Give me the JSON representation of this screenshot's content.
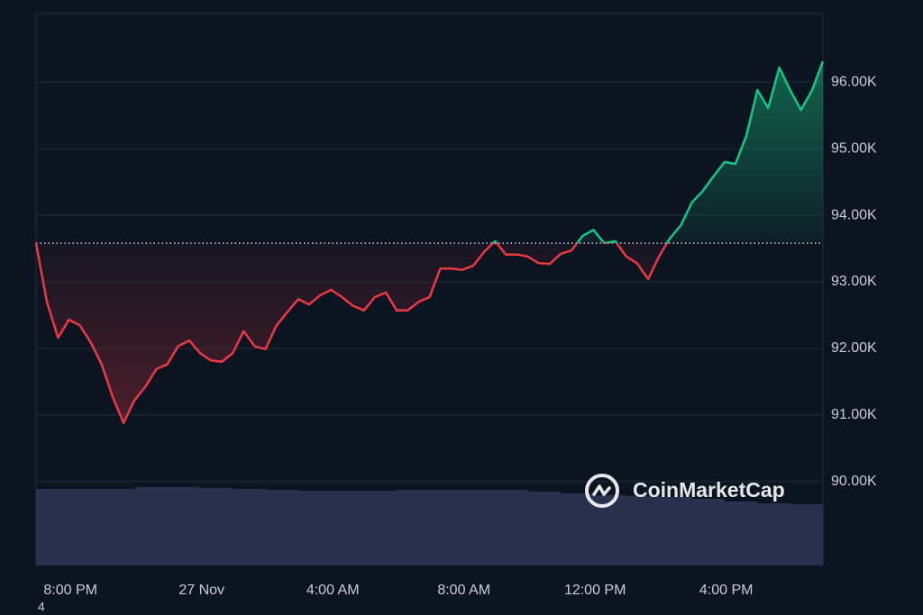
{
  "chart_data": {
    "type": "line",
    "x": [
      -1.05,
      -0.72,
      -0.38,
      -0.05,
      0.28,
      0.62,
      0.95,
      1.28,
      1.62,
      1.95,
      2.28,
      2.62,
      2.95,
      3.28,
      3.62,
      3.95,
      4.28,
      4.62,
      4.95,
      5.28,
      5.62,
      5.95,
      6.28,
      6.62,
      6.95,
      7.28,
      7.62,
      7.95,
      8.28,
      8.62,
      8.95,
      9.28,
      9.62,
      9.95,
      10.28,
      10.62,
      10.95,
      11.28,
      11.62,
      11.95,
      12.28,
      12.62,
      12.95,
      13.28,
      13.62,
      13.95,
      14.28,
      14.62,
      14.95,
      15.28,
      15.62,
      15.95,
      16.28,
      16.62,
      16.95,
      17.28,
      17.62,
      17.95,
      18.28,
      18.62,
      18.95,
      19.28,
      19.62,
      19.95,
      20.28,
      20.62,
      20.95,
      21.28,
      21.62,
      21.95,
      22.28,
      22.62,
      22.95
    ],
    "values": [
      93.58,
      92.7,
      92.16,
      92.43,
      92.35,
      92.09,
      91.76,
      91.28,
      90.88,
      91.22,
      91.42,
      91.69,
      91.76,
      92.03,
      92.12,
      91.93,
      91.82,
      91.8,
      91.93,
      92.26,
      92.03,
      91.99,
      92.34,
      92.55,
      92.74,
      92.66,
      92.8,
      92.88,
      92.77,
      92.64,
      92.57,
      92.77,
      92.84,
      92.57,
      92.57,
      92.7,
      92.77,
      93.2,
      93.2,
      93.18,
      93.24,
      93.45,
      93.61,
      93.41,
      93.41,
      93.38,
      93.28,
      93.27,
      93.42,
      93.47,
      93.69,
      93.78,
      93.58,
      93.61,
      93.38,
      93.28,
      93.04,
      93.38,
      93.65,
      93.85,
      94.19,
      94.36,
      94.59,
      94.8,
      94.77,
      95.2,
      95.88,
      95.61,
      96.22,
      95.88,
      95.58,
      95.88,
      96.31
    ],
    "baseline": 93.58,
    "colors": {
      "up": "#16c784",
      "down": "#ea3943"
    },
    "xlim": [
      -1.05,
      22.95
    ],
    "xticks": [
      {
        "value": 0,
        "label": "8:00 PM"
      },
      {
        "value": 4,
        "label": "27 Nov"
      },
      {
        "value": 8,
        "label": "4:00 AM"
      },
      {
        "value": 12,
        "label": "8:00 AM"
      },
      {
        "value": 16,
        "label": "12:00 PM"
      },
      {
        "value": 20,
        "label": "4:00 PM"
      }
    ],
    "ylim": [
      88.74,
      97.03
    ],
    "yticks": [
      {
        "value": 90,
        "label": "90.00K"
      },
      {
        "value": 91,
        "label": "91.00K"
      },
      {
        "value": 92,
        "label": "92.00K"
      },
      {
        "value": 93,
        "label": "93.00K"
      },
      {
        "value": 94,
        "label": "94.00K"
      },
      {
        "value": 95,
        "label": "95.00K"
      },
      {
        "value": 96,
        "label": "96.00K"
      }
    ],
    "grid": true,
    "volume": {
      "values": [
        85,
        85,
        85,
        87,
        87,
        86,
        85,
        84,
        83,
        83,
        83,
        84,
        84,
        84,
        84,
        82,
        80,
        78,
        77,
        76,
        74,
        71,
        69,
        68
      ],
      "lim": [
        0,
        100
      ],
      "color": "#29314f"
    },
    "watermark": "CoinMarketCap",
    "footnote": "4"
  }
}
